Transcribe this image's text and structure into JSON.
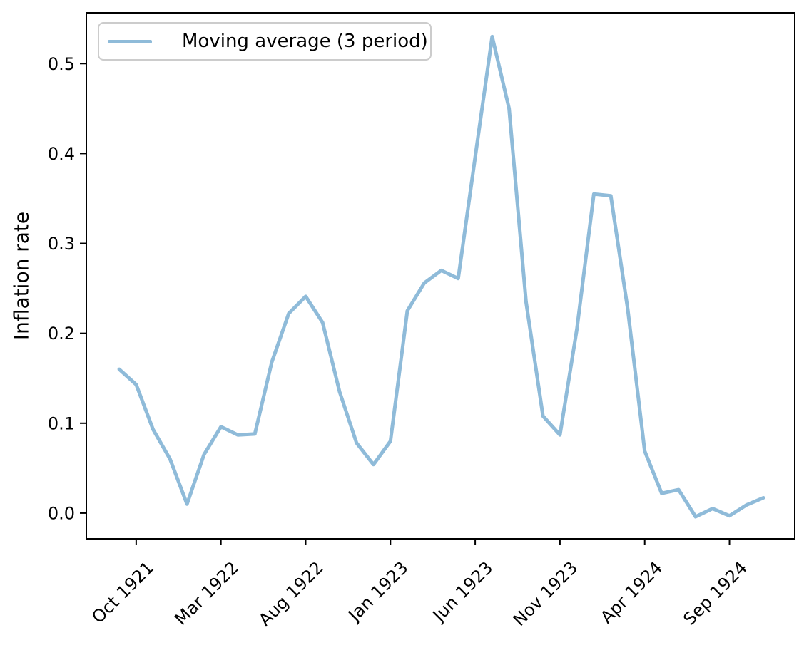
{
  "figure": {
    "background": "#ffffff"
  },
  "chart_data": {
    "type": "line",
    "title": "",
    "xlabel": "",
    "ylabel": "Inflation rate",
    "legend_label": "Moving average (3 period)",
    "legend_position": "upper left",
    "line_color": "#8fbbd9",
    "axis_color": "#000000",
    "grid": false,
    "x": [
      "Sep 1921",
      "Oct 1921",
      "Nov 1921",
      "Dec 1921",
      "Jan 1922",
      "Feb 1922",
      "Mar 1922",
      "Apr 1922",
      "May 1922",
      "Jun 1922",
      "Jul 1922",
      "Aug 1922",
      "Sep 1922",
      "Oct 1922",
      "Nov 1922",
      "Dec 1922",
      "Jan 1923",
      "Feb 1923",
      "Mar 1923",
      "Apr 1923",
      "May 1923",
      "Jun 1923",
      "Jul 1923",
      "Aug 1923",
      "Sep 1923",
      "Oct 1923",
      "Nov 1923",
      "Dec 1923",
      "Jan 1924",
      "Feb 1924",
      "Mar 1924",
      "Apr 1924",
      "May 1924",
      "Jun 1924",
      "Jul 1924",
      "Aug 1924",
      "Sep 1924",
      "Oct 1924",
      "Nov 1924"
    ],
    "values": [
      0.16,
      0.143,
      0.093,
      0.06,
      0.01,
      0.065,
      0.096,
      0.087,
      0.088,
      0.168,
      0.222,
      0.241,
      0.212,
      0.135,
      0.078,
      0.054,
      0.08,
      0.225,
      0.256,
      0.27,
      0.261,
      0.396,
      0.53,
      0.45,
      0.235,
      0.108,
      0.087,
      0.205,
      0.355,
      0.353,
      0.227,
      0.069,
      0.022,
      0.026,
      -0.004,
      0.005,
      -0.003,
      0.009,
      0.017
    ],
    "xtick_labels": [
      "Oct 1921",
      "Mar 1922",
      "Aug 1922",
      "Jan 1923",
      "Jun 1923",
      "Nov 1923",
      "Apr 1924",
      "Sep 1924"
    ],
    "xtick_rotation": 45,
    "ytick_labels": [
      "0.0",
      "0.1",
      "0.2",
      "0.3",
      "0.4",
      "0.5"
    ],
    "yticks": [
      0.0,
      0.1,
      0.2,
      0.3,
      0.4,
      0.5
    ],
    "ylim": [
      -0.0286,
      0.5565
    ],
    "xlim_index": [
      -1.94,
      39.85
    ]
  }
}
